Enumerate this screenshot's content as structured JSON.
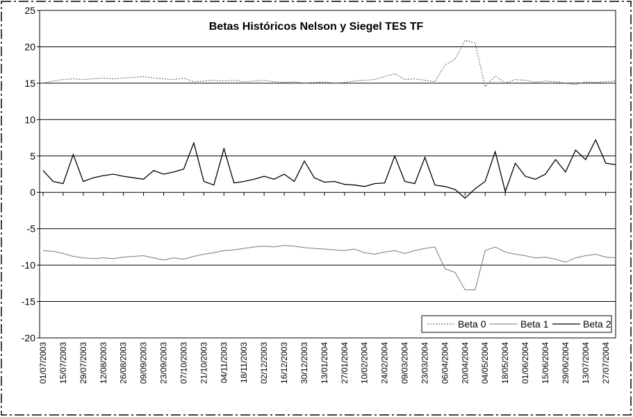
{
  "chart_data": {
    "type": "line",
    "title": "Betas Históricos Nelson y Siegel TES TF",
    "categories": [
      "01/07/2003",
      null,
      "15/07/2003",
      null,
      "29/07/2003",
      null,
      "12/08/2003",
      null,
      "26/08/2003",
      null,
      "09/09/2003",
      null,
      "23/09/2003",
      null,
      "07/10/2003",
      null,
      "21/10/2003",
      null,
      "04/11/2003",
      null,
      "18/11/2003",
      null,
      "02/12/2003",
      null,
      "16/12/2003",
      null,
      "30/12/2003",
      null,
      "13/01/2004",
      null,
      "27/01/2004",
      null,
      "10/02/2004",
      null,
      "24/02/2004",
      null,
      "09/03/2004",
      null,
      "23/03/2004",
      null,
      "06/04/2004",
      null,
      "20/04/2004",
      null,
      "04/05/2004",
      null,
      "18/05/2004",
      null,
      "01/06/2004",
      null,
      "15/06/2004",
      null,
      "29/06/2004",
      null,
      "13/07/2004",
      null,
      "27/07/2004",
      null
    ],
    "series": [
      {
        "name": "Beta 0",
        "color": "#555555",
        "dash": "dotted",
        "values": [
          15,
          15.3,
          15.5,
          15.6,
          15.5,
          15.6,
          15.7,
          15.6,
          15.7,
          15.8,
          15.9,
          15.7,
          15.6,
          15.5,
          15.7,
          15.2,
          15.3,
          15.4,
          15.3,
          15.4,
          15.2,
          15.3,
          15.4,
          15.2,
          15.1,
          15.2,
          15.0,
          15.1,
          15.2,
          15.0,
          15.1,
          15.3,
          15.4,
          15.5,
          15.9,
          16.3,
          15.5,
          15.6,
          15.4,
          15.2,
          17.5,
          18.3,
          20.9,
          20.5,
          14.5,
          16.0,
          15.0,
          15.5,
          15.4,
          15.1,
          15.3,
          15.2,
          15.0,
          14.8,
          15.2,
          15.1,
          15.2,
          15.3
        ]
      },
      {
        "name": "Beta 1",
        "color": "#777777",
        "dash": "solid",
        "values": [
          -8.0,
          -8.1,
          -8.4,
          -8.8,
          -9.0,
          -9.1,
          -9.0,
          -9.1,
          -8.9,
          -8.8,
          -8.7,
          -9.0,
          -9.3,
          -9.0,
          -9.2,
          -8.8,
          -8.5,
          -8.3,
          -8.0,
          -7.9,
          -7.7,
          -7.5,
          -7.4,
          -7.5,
          -7.3,
          -7.4,
          -7.6,
          -7.7,
          -7.8,
          -7.9,
          -8.0,
          -7.8,
          -8.3,
          -8.5,
          -8.2,
          -8.0,
          -8.4,
          -8.0,
          -7.7,
          -7.5,
          -10.5,
          -11.0,
          -13.4,
          -13.4,
          -8.0,
          -7.5,
          -8.2,
          -8.5,
          -8.7,
          -9.0,
          -8.9,
          -9.2,
          -9.6,
          -9.0,
          -8.7,
          -8.5,
          -8.9,
          -9.0
        ]
      },
      {
        "name": "Beta 2",
        "color": "#000000",
        "dash": "solid",
        "values": [
          3.0,
          1.5,
          1.2,
          5.2,
          1.5,
          2.0,
          2.3,
          2.5,
          2.2,
          2.0,
          1.8,
          3.0,
          2.5,
          2.8,
          3.2,
          6.8,
          1.5,
          1.0,
          6.0,
          1.3,
          1.5,
          1.8,
          2.2,
          1.8,
          2.5,
          1.5,
          4.3,
          2.0,
          1.4,
          1.5,
          1.1,
          1.0,
          0.8,
          1.2,
          1.3,
          5.0,
          1.5,
          1.2,
          4.8,
          1.0,
          0.8,
          0.4,
          -0.8,
          0.5,
          1.5,
          5.6,
          0.1,
          4.0,
          2.2,
          1.8,
          2.5,
          4.5,
          2.8,
          5.8,
          4.5,
          7.2,
          4.0,
          3.8
        ]
      }
    ],
    "ylim": [
      -20,
      25
    ],
    "yticks": [
      -20,
      -15,
      -10,
      -5,
      0,
      5,
      10,
      15,
      20,
      25
    ],
    "grid": true,
    "legend": "bottom-right"
  }
}
